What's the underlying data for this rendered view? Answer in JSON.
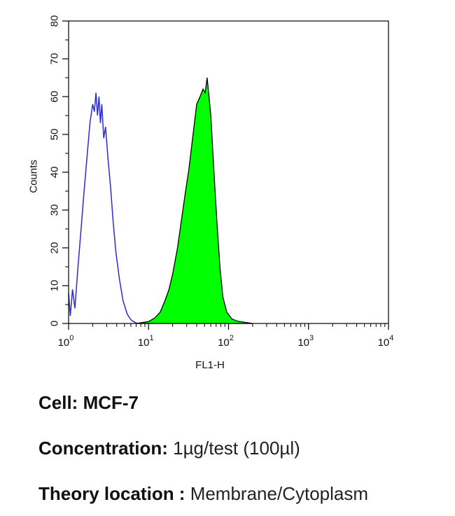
{
  "chart_data": {
    "type": "area",
    "xscale": "log",
    "xlim": [
      1,
      10000
    ],
    "ylim": [
      0,
      80
    ],
    "xlabel": "FL1-H",
    "ylabel": "Counts",
    "x_tick_bases": [
      "10",
      "10",
      "10",
      "10",
      "10"
    ],
    "x_tick_exponents": [
      "0",
      "1",
      "2",
      "3",
      "4"
    ],
    "x_tick_values": [
      1,
      10,
      100,
      1000,
      10000
    ],
    "y_ticks": [
      "0",
      "10",
      "20",
      "30",
      "40",
      "50",
      "60",
      "70",
      "80"
    ],
    "series": [
      {
        "style": "outline",
        "color": "#2a2ad6",
        "x": [
          1.0,
          1.05,
          1.12,
          1.2,
          1.3,
          1.42,
          1.55,
          1.7,
          1.85,
          2.0,
          2.1,
          2.2,
          2.3,
          2.4,
          2.5,
          2.6,
          2.75,
          2.9,
          3.1,
          3.35,
          3.6,
          3.9,
          4.3,
          4.8,
          5.4,
          6.0,
          6.6,
          7.2
        ],
        "y": [
          8,
          2,
          9,
          4,
          14,
          24,
          34,
          44,
          53,
          58,
          56,
          61,
          55,
          60,
          53,
          58,
          49,
          52,
          44,
          36,
          27,
          19,
          12,
          6,
          2.5,
          1,
          0.4,
          0
        ]
      },
      {
        "style": "filled",
        "color": "#00ff00",
        "x": [
          7,
          10,
          12,
          14,
          16,
          18,
          20,
          23,
          26,
          29,
          32,
          36,
          40,
          44,
          48,
          51,
          54,
          57,
          60,
          63,
          67,
          72,
          78,
          85,
          95,
          110,
          130,
          160,
          200
        ],
        "y": [
          0,
          0.5,
          1.5,
          3,
          6,
          9,
          13,
          20,
          28,
          35,
          41,
          50,
          58,
          60,
          62,
          61,
          65,
          60,
          55,
          47,
          37,
          26,
          15,
          7,
          3,
          1.2,
          0.6,
          0.3,
          0
        ]
      }
    ]
  },
  "caption": {
    "cell_label": "Cell:",
    "cell_value": " MCF-7",
    "concentration_label": "Concentration:",
    "concentration_value": " 1µg/test (100µl)",
    "location_label": "Theory location :",
    "location_value": " Membrane/Cytoplasm"
  }
}
